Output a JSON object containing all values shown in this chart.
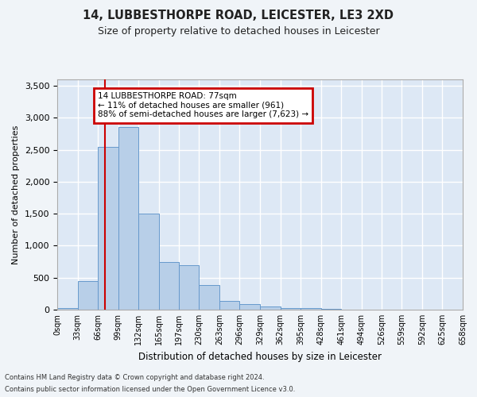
{
  "title1": "14, LUBBESTHORPE ROAD, LEICESTER, LE3 2XD",
  "title2": "Size of property relative to detached houses in Leicester",
  "xlabel": "Distribution of detached houses by size in Leicester",
  "ylabel": "Number of detached properties",
  "bar_color": "#b8cfe8",
  "bar_edge_color": "#6699cc",
  "background_color": "#dde8f5",
  "grid_color": "#ffffff",
  "annotation_box_color": "#cc0000",
  "annotation_text": "14 LUBBESTHORPE ROAD: 77sqm\n← 11% of detached houses are smaller (961)\n88% of semi-detached houses are larger (7,623) →",
  "vline_x": 77,
  "vline_color": "#cc0000",
  "bin_edges": [
    0,
    33,
    66,
    99,
    132,
    165,
    197,
    230,
    263,
    296,
    329,
    362,
    395,
    428,
    461,
    494,
    526,
    559,
    592,
    625,
    658
  ],
  "bar_heights": [
    30,
    450,
    2550,
    2850,
    1500,
    750,
    700,
    380,
    140,
    90,
    50,
    30,
    30,
    15,
    5,
    5,
    3,
    2,
    2,
    1
  ],
  "ylim": [
    0,
    3600
  ],
  "yticks": [
    0,
    500,
    1000,
    1500,
    2000,
    2500,
    3000,
    3500
  ],
  "footnote1": "Contains HM Land Registry data © Crown copyright and database right 2024.",
  "footnote2": "Contains public sector information licensed under the Open Government Licence v3.0."
}
